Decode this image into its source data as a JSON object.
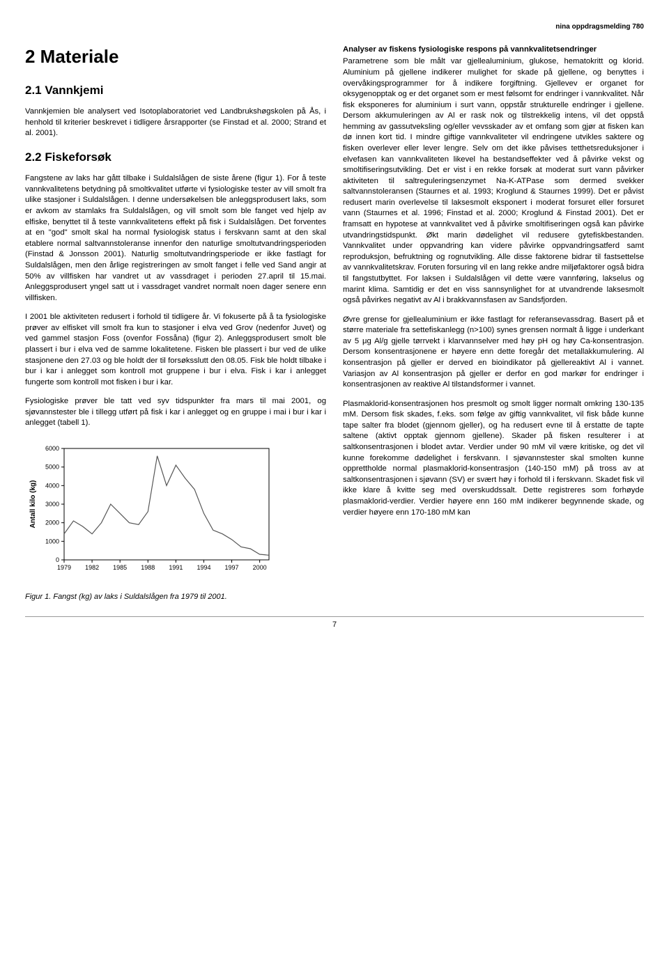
{
  "header": {
    "running": "nina oppdragsmelding 780"
  },
  "h1": "2 Materiale",
  "sec21": {
    "title": "2.1 Vannkjemi",
    "p1": "Vannkjemien ble analysert ved Isotoplaboratoriet ved Landbrukshøgskolen på Ås, i henhold til kriterier beskrevet i tidligere årsrapporter (se Finstad et al. 2000; Strand et al. 2001)."
  },
  "sec22": {
    "title": "2.2 Fiskeforsøk",
    "p1": "Fangstene av laks har gått tilbake i Suldalslågen de siste årene (figur 1). For å teste vannkvalitetens betydning på smoltkvalitet utførte vi fysiologiske tester av vill smolt fra ulike stasjoner i Suldalslågen. I denne undersøkelsen ble anleggsprodusert laks, som er avkom av stamlaks fra Suldalslågen, og vill smolt som ble fanget ved hjelp av elfiske, benyttet til å teste vannkvalitetens effekt på fisk i Suldalslågen. Det forventes at en \"god\" smolt skal ha normal fysiologisk status i ferskvann samt at den skal etablere normal saltvannstoleranse innenfor den naturlige smoltutvandringsperioden (Finstad & Jonsson 2001). Naturlig smoltutvandringsperiode er ikke fastlagt for Suldalslågen, men den årlige registreringen av smolt fanget i felle ved Sand angir at 50% av villfisken har vandret ut av vassdraget i perioden 27.april til 15.mai. Anleggsprodusert yngel satt ut i vassdraget vandret normalt noen dager senere enn villfisken.",
    "p2": "I 2001 ble aktiviteten redusert i forhold til tidligere år. Vi fokuserte på å ta fysiologiske prøver av elfisket vill smolt fra kun to stasjoner i elva ved Grov (nedenfor Juvet) og ved gammel stasjon Foss (ovenfor Fossåna) (figur 2). Anleggsprodusert smolt ble plassert i bur i elva ved de samme lokalitetene. Fisken ble plassert i bur ved de ulike stasjonene den 27.03 og ble holdt der til forsøksslutt den 08.05. Fisk ble holdt tilbake i bur i kar i anlegget som kontroll mot gruppene i bur i elva. Fisk i kar i anlegget fungerte som kontroll mot fisken i bur i kar.",
    "p3": "Fysiologiske prøver ble tatt ved syv tidspunkter fra mars til mai 2001, og sjøvannstester ble i tillegg utført på fisk i kar i anlegget og en gruppe i mai i bur i kar i anlegget (tabell 1)."
  },
  "right": {
    "h": "Analyser av fiskens fysiologiske respons på vannkvalitetsendringer",
    "p1": "Parametrene som ble målt var gjellealuminium, glukose, hematokritt og klorid. Aluminium på gjellene indikerer mulighet for skade på gjellene, og benyttes i overvåkingsprogrammer for å indikere forgiftning. Gjellevev er organet for oksygenopptak og er det organet som er mest følsomt for endringer i vannkvalitet. Når fisk eksponeres for aluminium i surt vann, oppstår strukturelle endringer i gjellene. Dersom akkumuleringen av Al er rask nok og tilstrekkelig intens, vil det oppstå hemming av gassutveksling og/eller vevsskader av et omfang som gjør at fisken kan dø innen kort tid. I mindre giftige vannkvaliteter vil endringene utvikles saktere og fisken overlever eller lever lengre. Selv om det ikke påvises tetthetsreduksjoner i elvefasen kan vannkvaliteten likevel ha bestandseffekter ved å påvirke vekst og smoltifiseringsutvikling. Det er vist i en rekke forsøk at moderat surt vann påvirker aktiviteten til saltreguleringsenzymet Na-K-ATPase som dermed svekker saltvannstoleransen (Staurnes et al. 1993; Kroglund & Staurnes 1999). Det er påvist redusert marin overlevelse til laksesmolt eksponert i moderat forsuret eller forsuret vann (Staurnes et al. 1996; Finstad et al. 2000; Kroglund & Finstad 2001). Det er framsatt en hypotese at vannkvalitet ved å påvirke smoltifiseringen også kan påvirke utvandringstidspunkt. Økt marin dødelighet vil redusere gytefiskbestanden. Vannkvalitet under oppvandring kan videre påvirke oppvandringsatferd samt reproduksjon, befruktning og rognutvikling. Alle disse faktorene bidrar til fastsettelse av vannkvalitetskrav. Foruten forsuring vil en lang rekke andre miljøfaktorer også bidra til fangstutbyttet. For laksen i Suldalslågen vil dette være vannføring, lakselus og marint klima. Samtidig er det en viss sannsynlighet for at utvandrende laksesmolt også påvirkes negativt av Al i brakkvannsfasen av Sandsfjorden.",
    "p2": "Øvre grense for gjellealuminium er ikke fastlagt for referansevassdrag. Basert på et større materiale fra settefiskanlegg (n>100) synes grensen normalt å ligge i underkant av 5 μg Al/g gjelle tørrvekt i klarvannselver med høy pH og høy Ca-konsentrasjon. Dersom konsentrasjonene er høyere enn dette foregår det metallakkumulering. Al konsentrasjon på gjeller er derved en bioindikator på gjellereaktivt Al i vannet. Variasjon av Al konsentrasjon på gjeller er derfor en god markør for endringer i konsentrasjonen av reaktive Al tilstandsformer i vannet.",
    "p3": "Plasmaklorid-konsentrasjonen hos presmolt og smolt ligger normalt omkring 130-135 mM. Dersom fisk skades, f.eks. som følge av giftig vannkvalitet, vil fisk både kunne tape salter fra blodet (gjennom gjeller), og ha redusert evne til å erstatte de tapte saltene (aktivt opptak gjennom gjellene). Skader på fisken resulterer i at saltkonsentrasjonen i blodet avtar. Verdier under 90 mM vil være kritiske, og det vil kunne forekomme dødelighet i ferskvann. I sjøvannstester skal smolten kunne opprettholde normal plasmaklorid-konsentrasjon (140-150 mM) på tross av at saltkonsentrasjonen i sjøvann (SV) er svært høy i forhold til i ferskvann. Skadet fisk vil ikke klare å kvitte seg med overskuddssalt. Dette registreres som forhøyde plasmaklorid-verdier. Verdier høyere enn 160 mM indikerer begynnende skade, og verdier høyere enn 170-180 mM kan"
  },
  "chart": {
    "type": "line",
    "ylabel": "Antall kilo (kg)",
    "ylim": [
      0,
      6000
    ],
    "ytick_step": 1000,
    "yticks": [
      0,
      1000,
      2000,
      3000,
      4000,
      5000,
      6000
    ],
    "xlabels": [
      "1979",
      "1982",
      "1985",
      "1988",
      "1991",
      "1994",
      "1997",
      "2000"
    ],
    "years": [
      1979,
      1980,
      1981,
      1982,
      1983,
      1984,
      1985,
      1986,
      1987,
      1988,
      1989,
      1990,
      1991,
      1992,
      1993,
      1994,
      1995,
      1996,
      1997,
      1998,
      1999,
      2000,
      2001
    ],
    "values": [
      1400,
      2100,
      1800,
      1400,
      2000,
      3000,
      2500,
      2000,
      1900,
      2600,
      5600,
      4000,
      5100,
      4400,
      3800,
      2500,
      1600,
      1400,
      1100,
      700,
      600,
      300,
      250
    ],
    "line_color": "#555555",
    "line_width": 1.2,
    "background_color": "#ffffff",
    "axis_color": "#000000",
    "label_fontsize": 10,
    "tick_fontsize": 9
  },
  "fig1_caption": "Figur 1. Fangst (kg) av laks i Suldalslågen fra 1979 til 2001.",
  "page_number": "7"
}
